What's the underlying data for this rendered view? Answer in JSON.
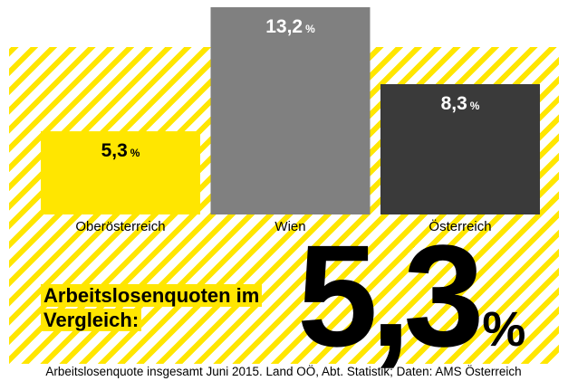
{
  "chart_data": {
    "type": "bar",
    "title": "Arbeitslosenquoten im Vergleich:",
    "categories": [
      "Oberösterreich",
      "Wien",
      "Österreich"
    ],
    "values": [
      5.3,
      13.2,
      8.3
    ],
    "value_labels": [
      "5,3",
      "13,2",
      "8,3"
    ],
    "unit": "%",
    "colors": [
      "#ffe600",
      "#808080",
      "#3a3a3a"
    ],
    "label_colors": [
      "#000000",
      "#ffffff",
      "#ffffff"
    ],
    "ylim": [
      0,
      13.2
    ],
    "footnote": "Arbeitslosenquote insgesamt Juni 2015. Land OÖ, Abt. Statistik; Daten: AMS Österreich"
  }
}
